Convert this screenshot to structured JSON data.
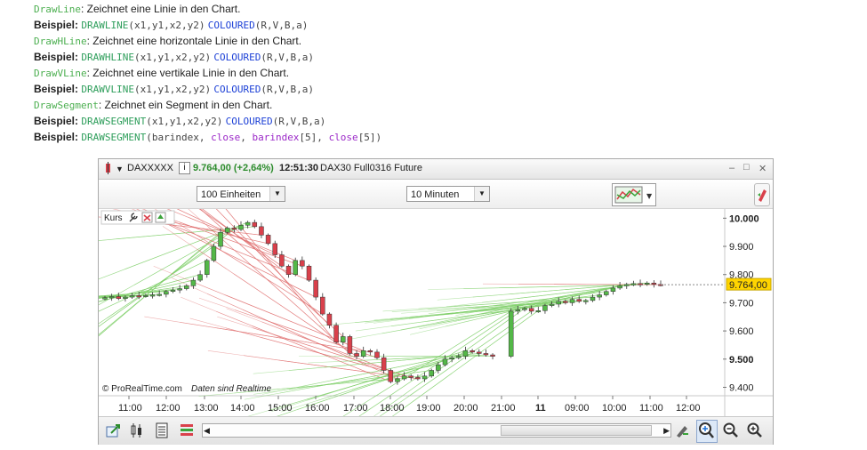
{
  "doc": {
    "lines": [
      {
        "kw": "DrawLine",
        "text": ": Zeichnet eine Linie in den Chart."
      },
      {
        "label": "Beispiel:",
        "fn": "DRAWLINE",
        "args": "(x1,y1,x2,y2)",
        "col": "COLOURED",
        "cargs": "(R,V,B,a)"
      },
      {
        "kw": "DrawHLine",
        "text": ": Zeichnet eine horizontale Linie in den Chart."
      },
      {
        "label": "Beispiel:",
        "fn": "DRAWHLINE",
        "args": "(x1,y1,x2,y2)",
        "col": "COLOURED",
        "cargs": "(R,V,B,a)"
      },
      {
        "kw": "DrawVLine",
        "text": ": Zeichnet eine vertikale Linie in den Chart."
      },
      {
        "label": "Beispiel:",
        "fn": "DRAWVLINE",
        "args": "(x1,y1,x2,y2)",
        "col": "COLOURED",
        "cargs": "(R,V,B,a)"
      },
      {
        "kw": "DrawSegment",
        "text": ": Zeichnet ein Segment in den Chart."
      },
      {
        "label": "Beispiel:",
        "fn": "DRAWSEGMENT",
        "args": "(x1,y1,x2,y2)",
        "col": "COLOURED",
        "cargs": "(R,V,B,a)"
      },
      {
        "label": "Beispiel:",
        "fn": "DRAWSEGMENT",
        "p1": "(barindex, ",
        "v1": "close",
        "p2": ", ",
        "v2": "barindex",
        "p3": "[5], ",
        "v3": "close",
        "p4": "[5])"
      }
    ]
  },
  "window": {
    "instrument": "DAXXXXX",
    "info_icon": "i",
    "price_change": "9.764,00 (+2,64%)",
    "time": "12:51:30",
    "description": "DAX30 Full0316 Future",
    "controls": {
      "minimize": "–",
      "maximize": "□",
      "close": "✕"
    }
  },
  "toolbar": {
    "units_select": "100 Einheiten",
    "interval_select": "10 Minuten"
  },
  "chart": {
    "panel_label": "Kurs",
    "watermark": "© ProRealTime.com",
    "realtime_note": "Daten sind Realtime",
    "price_badge": "9.764,00",
    "colors": {
      "up": "#54b848",
      "down": "#d9404b",
      "green_line": "#7fd06a",
      "red_line": "#e07070",
      "badge": "#ffd400"
    }
  },
  "chart_data": {
    "type": "candlestick",
    "y_ticks": [
      "10.000",
      "9.900",
      "9.800",
      "9.700",
      "9.600",
      "9.500",
      "9.400"
    ],
    "y_tick_values": [
      10000,
      9900,
      9800,
      9700,
      9600,
      9500,
      9400
    ],
    "ylim": [
      9370,
      10020
    ],
    "x_ticks": [
      "11:00",
      "12:00",
      "13:00",
      "14:00",
      "15:00",
      "16:00",
      "17:00",
      "18:00",
      "19:00",
      "20:00",
      "21:00",
      "11",
      "09:00",
      "10:00",
      "11:00",
      "12:00"
    ],
    "last_price": 9764,
    "closes_approx": [
      9718,
      9722,
      9715,
      9720,
      9725,
      9724,
      9726,
      9728,
      9730,
      9740,
      9745,
      9750,
      9760,
      9780,
      9800,
      9850,
      9900,
      9950,
      9965,
      9960,
      9975,
      9985,
      9970,
      9940,
      9910,
      9870,
      9830,
      9800,
      9850,
      9830,
      9780,
      9720,
      9660,
      9620,
      9560,
      9580,
      9520,
      9510,
      9530,
      9525,
      9505,
      9460,
      9420,
      9430,
      9440,
      9435,
      9430,
      9440,
      9460,
      9480,
      9500,
      9505,
      9510,
      9530,
      9525,
      9520,
      9515,
      9510,
      9670,
      9675,
      9680,
      9670,
      9672,
      9690,
      9695,
      9705,
      9700,
      9712,
      9705,
      9708,
      9720,
      9728,
      9740,
      9752,
      9760,
      9765,
      9768,
      9766,
      9770,
      9765,
      9764
    ]
  },
  "bottom": {
    "scroll_left": "◀",
    "scroll_right": "▶",
    "zoom_out": "−",
    "zoom_in": "+"
  }
}
